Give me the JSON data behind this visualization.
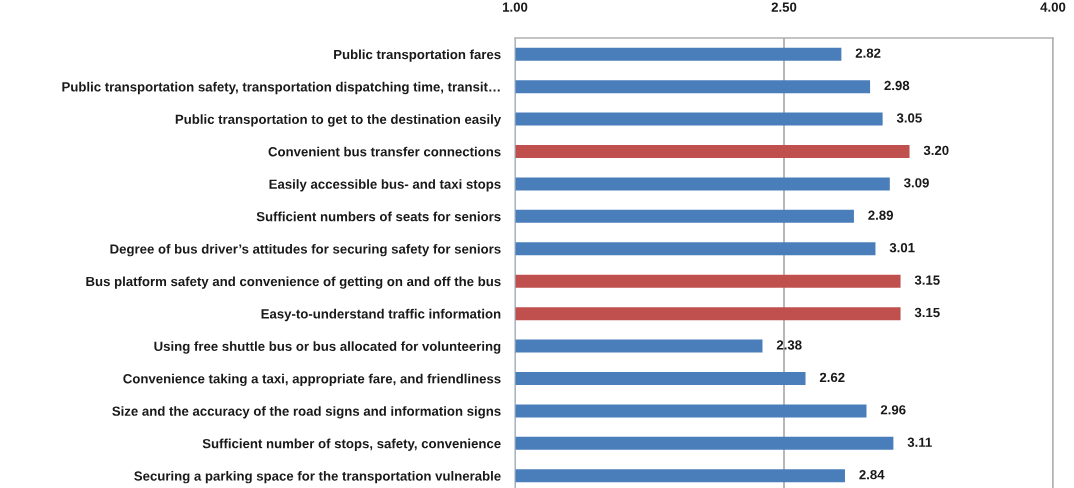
{
  "chart_data": {
    "type": "bar",
    "orientation": "horizontal",
    "categories": [
      "Public transportation fares",
      "Public transportation safety, transportation dispatching time, transit…",
      "Public transportation to get to the destination easily",
      "Convenient bus transfer connections",
      "Easily accessible bus- and taxi stops",
      "Sufficient numbers of seats for seniors",
      "Degree of bus driver’s attitudes for securing safety for seniors",
      "Bus platform safety and convenience of getting on and off the bus",
      "Easy-to-understand traffic information",
      "Using free shuttle bus or bus allocated for volunteering",
      "Convenience taking a taxi, appropriate fare, and friendliness",
      "Size and the accuracy of the road signs and information signs",
      "Sufficient number of stops, safety, convenience",
      "Securing a parking space for the transportation vulnerable"
    ],
    "values": [
      2.82,
      2.98,
      3.05,
      3.2,
      3.09,
      2.89,
      3.01,
      3.15,
      3.15,
      2.38,
      2.62,
      2.96,
      3.11,
      2.84
    ],
    "colors": [
      "#4a7ebb",
      "#4a7ebb",
      "#4a7ebb",
      "#c0504d",
      "#4a7ebb",
      "#4a7ebb",
      "#4a7ebb",
      "#c0504d",
      "#c0504d",
      "#4a7ebb",
      "#4a7ebb",
      "#4a7ebb",
      "#4a7ebb",
      "#4a7ebb"
    ],
    "value_labels": [
      "2.82",
      "2.98",
      "3.05",
      "3.20",
      "3.09",
      "2.89",
      "3.01",
      "3.15",
      "3.15",
      "2.38",
      "2.62",
      "2.96",
      "3.11",
      "2.84"
    ],
    "xlim": [
      1,
      4
    ],
    "xticks": [
      {
        "value": 1,
        "label": "1.00"
      },
      {
        "value": 2.5,
        "label": "2.50"
      },
      {
        "value": 4,
        "label": "4.00"
      }
    ],
    "grid": "x"
  }
}
